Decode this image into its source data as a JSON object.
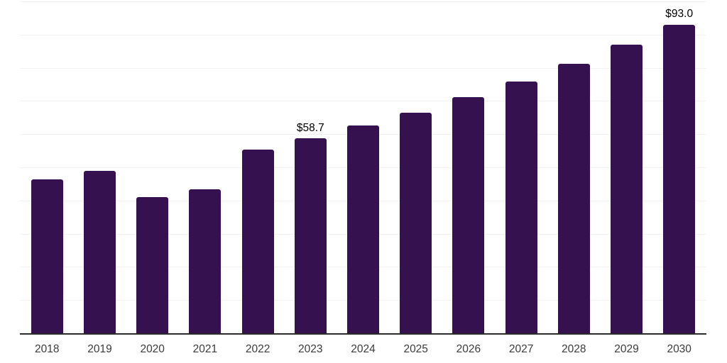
{
  "chart_data": {
    "type": "bar",
    "title": "",
    "xlabel": "",
    "ylabel": "",
    "categories": [
      "2018",
      "2019",
      "2020",
      "2021",
      "2022",
      "2023",
      "2024",
      "2025",
      "2026",
      "2027",
      "2028",
      "2029",
      "2030"
    ],
    "values": [
      46.3,
      48.9,
      41.0,
      43.4,
      55.4,
      58.7,
      62.7,
      66.5,
      71.1,
      75.8,
      81.2,
      87.0,
      93.0
    ],
    "value_labels": [
      {
        "category": "2023",
        "text": "$58.7"
      },
      {
        "category": "2030",
        "text": "$93.0"
      }
    ],
    "ylim": [
      0,
      100
    ],
    "gridline_step": 10,
    "grid": "horizontal",
    "legend": "none",
    "y_axis_ticks_visible": false,
    "bar_color": "#351150",
    "axis_color": "#2B2B2B",
    "gridline_color": "#F2F2F4",
    "value_label_color": "#000000",
    "tick_label_color": "#3B3B3B"
  }
}
